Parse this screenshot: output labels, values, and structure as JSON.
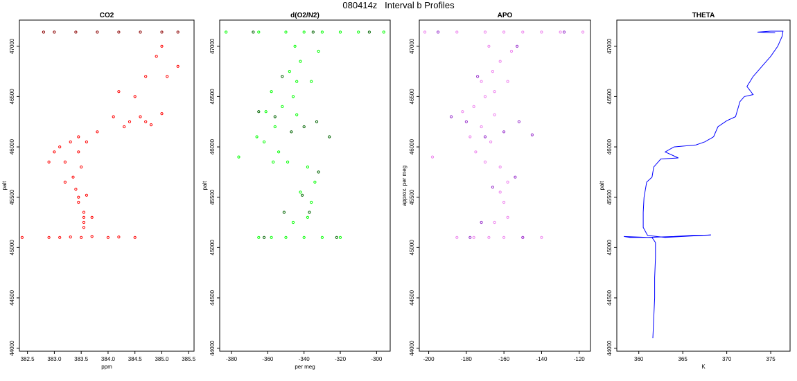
{
  "figure": {
    "title": "080414z   Interval b Profiles"
  },
  "chart_data": [
    {
      "type": "scatter",
      "title": "CO2",
      "xlabel": "ppm",
      "ylabel": "palt",
      "xlim": [
        382.35,
        385.6
      ],
      "ylim": [
        43970,
        47260
      ],
      "xticks": [
        382.5,
        383.0,
        383.5,
        384.0,
        384.5,
        385.0,
        385.5
      ],
      "xtick_labels": [
        "382.5",
        "383.0",
        "383.5",
        "384.0",
        "384.5",
        "385.0",
        "385.5"
      ],
      "yticks": [
        44000,
        44500,
        45000,
        45500,
        46000,
        46500,
        47000
      ],
      "ytick_labels": [
        "44000",
        "44500",
        "45000",
        "45500",
        "46000",
        "46500",
        "47000"
      ],
      "grid": false,
      "colors": {
        "primary": "#ff0000",
        "secondary": "#8b0000"
      },
      "series": [
        {
          "values": [
            [
              382.9,
              45100
            ],
            [
              383.1,
              45100
            ],
            [
              383.3,
              45105
            ],
            [
              383.5,
              45100
            ],
            [
              383.7,
              45110
            ],
            [
              384.0,
              45100
            ],
            [
              384.2,
              45105
            ],
            [
              384.5,
              45100
            ],
            [
              382.4,
              45100
            ],
            [
              383.55,
              45200
            ],
            [
              383.55,
              45250
            ],
            [
              383.55,
              45300
            ],
            [
              383.55,
              45350
            ],
            [
              383.45,
              45450
            ],
            [
              383.45,
              45500
            ],
            [
              383.4,
              45580
            ],
            [
              383.2,
              45650
            ],
            [
              383.35,
              45700
            ],
            [
              383.5,
              45800
            ],
            [
              383.2,
              45850
            ],
            [
              383.0,
              45950
            ],
            [
              383.45,
              45950
            ],
            [
              383.1,
              46000
            ],
            [
              383.3,
              46050
            ],
            [
              383.6,
              46050
            ],
            [
              383.45,
              46100
            ],
            [
              383.8,
              46150
            ],
            [
              384.3,
              46200
            ],
            [
              384.4,
              46250
            ],
            [
              384.6,
              46300
            ],
            [
              384.5,
              46500
            ],
            [
              384.7,
              46700
            ],
            [
              384.9,
              46900
            ],
            [
              385.0,
              47000
            ],
            [
              385.3,
              46800
            ],
            [
              385.0,
              46330
            ],
            [
              384.8,
              46220
            ],
            [
              384.1,
              46300
            ],
            [
              384.2,
              46550
            ],
            [
              385.1,
              46700
            ],
            [
              383.7,
              45300
            ],
            [
              383.6,
              45520
            ],
            [
              382.9,
              45850
            ],
            [
              384.7,
              46250
            ]
          ]
        },
        {
          "values": [
            [
              383.0,
              47140
            ],
            [
              383.4,
              47140
            ],
            [
              383.8,
              47140
            ],
            [
              384.2,
              47140
            ],
            [
              384.6,
              47140
            ],
            [
              385.0,
              47140
            ],
            [
              385.3,
              47140
            ],
            [
              382.8,
              47140
            ]
          ]
        }
      ]
    },
    {
      "type": "scatter",
      "title": "d(O2/N2)",
      "xlabel": "per meg",
      "ylabel": "palt",
      "xlim": [
        -386.5,
        -292.5
      ],
      "ylim": [
        43970,
        47260
      ],
      "xticks": [
        -380,
        -360,
        -340,
        -320,
        -300
      ],
      "xtick_labels": [
        "-380",
        "-360",
        "-340",
        "-320",
        "-300"
      ],
      "yticks": [
        44000,
        44500,
        45000,
        45500,
        46000,
        46500,
        47000
      ],
      "ytick_labels": [
        "44000",
        "44500",
        "45000",
        "45500",
        "46000",
        "46500",
        "47000"
      ],
      "grid": false,
      "colors": {
        "primary": "#00ff00",
        "secondary": "#006400"
      },
      "series": [
        {
          "values": [
            [
              -383,
              47140
            ],
            [
              -365,
              47140
            ],
            [
              -350,
              47140
            ],
            [
              -340,
              47140
            ],
            [
              -330,
              47140
            ],
            [
              -320,
              47140
            ],
            [
              -310,
              47140
            ],
            [
              -296,
              47140
            ],
            [
              -358,
              45100
            ],
            [
              -350,
              45100
            ],
            [
              -340,
              45100
            ],
            [
              -330,
              45100
            ],
            [
              -320,
              45100
            ],
            [
              -365,
              45100
            ],
            [
              -346,
              45250
            ],
            [
              -338,
              45300
            ],
            [
              -336,
              45450
            ],
            [
              -342,
              45550
            ],
            [
              -334,
              45650
            ],
            [
              -338,
              45800
            ],
            [
              -349,
              45850
            ],
            [
              -357,
              45850
            ],
            [
              -376,
              45900
            ],
            [
              -354,
              45950
            ],
            [
              -362,
              46050
            ],
            [
              -366,
              46100
            ],
            [
              -356,
              46200
            ],
            [
              -361,
              46350
            ],
            [
              -352,
              46400
            ],
            [
              -346,
              46500
            ],
            [
              -358,
              46550
            ],
            [
              -344,
              46650
            ],
            [
              -348,
              46750
            ],
            [
              -342,
              46850
            ],
            [
              -345,
              47000
            ],
            [
              -332,
              46950
            ],
            [
              -336,
              46650
            ],
            [
              -344,
              46320
            ]
          ]
        },
        {
          "values": [
            [
              -365,
              46350
            ],
            [
              -356,
              46300
            ],
            [
              -340,
              46200
            ],
            [
              -333,
              46250
            ],
            [
              -326,
              46100
            ],
            [
              -347,
              46150
            ],
            [
              -332,
              45750
            ],
            [
              -337,
              45350
            ],
            [
              -341,
              45520
            ],
            [
              -352,
              46700
            ],
            [
              -351,
              45350
            ],
            [
              -368,
              47140
            ],
            [
              -304,
              47140
            ],
            [
              -335,
              47140
            ],
            [
              -322,
              45100
            ],
            [
              -362,
              45100
            ]
          ]
        }
      ]
    },
    {
      "type": "scatter",
      "title": "APO",
      "xlabel": "",
      "ylabel": "approx. per meg",
      "xlim": [
        -205,
        -114
      ],
      "ylim": [
        43970,
        47260
      ],
      "xticks": [
        -200,
        -180,
        -160,
        -140,
        -120
      ],
      "xtick_labels": [
        "-200",
        "-180",
        "-160",
        "-140",
        "-120"
      ],
      "yticks": [
        44000,
        44500,
        45000,
        45500,
        46000,
        46500,
        47000
      ],
      "ytick_labels": [
        "44000",
        "44500",
        "45000",
        "45500",
        "46000",
        "46500",
        "47000"
      ],
      "grid": false,
      "colors": {
        "primary": "#ee82ee",
        "secondary": "#9932cc"
      },
      "series": [
        {
          "values": [
            [
              -202,
              47140
            ],
            [
              -185,
              47140
            ],
            [
              -170,
              47140
            ],
            [
              -160,
              47140
            ],
            [
              -150,
              47140
            ],
            [
              -140,
              47140
            ],
            [
              -130,
              47140
            ],
            [
              -118,
              47140
            ],
            [
              -176,
              45100
            ],
            [
              -168,
              45100
            ],
            [
              -160,
              45100
            ],
            [
              -150,
              45100
            ],
            [
              -140,
              45100
            ],
            [
              -185,
              45100
            ],
            [
              -165,
              45250
            ],
            [
              -158,
              45300
            ],
            [
              -160,
              45450
            ],
            [
              -162,
              45550
            ],
            [
              -158,
              45650
            ],
            [
              -162,
              45800
            ],
            [
              -170,
              45850
            ],
            [
              -175,
              45950
            ],
            [
              -198,
              45900
            ],
            [
              -167,
              46050
            ],
            [
              -178,
              46100
            ],
            [
              -172,
              46200
            ],
            [
              -182,
              46350
            ],
            [
              -176,
              46400
            ],
            [
              -170,
              46500
            ],
            [
              -165,
              46550
            ],
            [
              -172,
              46650
            ],
            [
              -166,
              46750
            ],
            [
              -162,
              46850
            ],
            [
              -168,
              47000
            ],
            [
              -156,
              46950
            ],
            [
              -158,
              46650
            ],
            [
              -165,
              46320
            ]
          ]
        },
        {
          "values": [
            [
              -188,
              46300
            ],
            [
              -180,
              46250
            ],
            [
              -160,
              46150
            ],
            [
              -152,
              46250
            ],
            [
              -145,
              46120
            ],
            [
              -170,
              46100
            ],
            [
              -154,
              45700
            ],
            [
              -172,
              45250
            ],
            [
              -178,
              45100
            ],
            [
              -195,
              47140
            ],
            [
              -128,
              47140
            ],
            [
              -150,
              45100
            ],
            [
              -166,
              45600
            ],
            [
              -174,
              46700
            ],
            [
              -153,
              47000
            ]
          ]
        }
      ]
    },
    {
      "type": "line",
      "title": "THETA",
      "xlabel": "K",
      "ylabel": "palt",
      "xlim": [
        357.5,
        377.2
      ],
      "ylim": [
        43970,
        47260
      ],
      "xticks": [
        360,
        365,
        370,
        375
      ],
      "xtick_labels": [
        "360",
        "365",
        "370",
        "375"
      ],
      "yticks": [
        44000,
        44500,
        45000,
        45500,
        46000,
        46500,
        47000
      ],
      "ytick_labels": [
        "44000",
        "44500",
        "45000",
        "45500",
        "46000",
        "46500",
        "47000"
      ],
      "grid": false,
      "colors": {
        "primary": "#0000ff"
      },
      "series": [
        {
          "values": [
            [
              361.6,
              44100
            ],
            [
              361.7,
              44300
            ],
            [
              361.8,
              44500
            ],
            [
              361.8,
              44700
            ],
            [
              361.9,
              44900
            ],
            [
              361.9,
              45050
            ],
            [
              361.5,
              45100
            ],
            [
              359.0,
              45100
            ],
            [
              358.3,
              45110
            ],
            [
              361.0,
              45100
            ],
            [
              364.0,
              45110
            ],
            [
              366.0,
              45120
            ],
            [
              368.2,
              45125
            ],
            [
              363.0,
              45100
            ],
            [
              361.0,
              45120
            ],
            [
              360.5,
              45200
            ],
            [
              360.5,
              45350
            ],
            [
              360.6,
              45500
            ],
            [
              360.9,
              45650
            ],
            [
              361.5,
              45700
            ],
            [
              361.7,
              45800
            ],
            [
              362.5,
              45880
            ],
            [
              364.5,
              45890
            ],
            [
              363.0,
              45950
            ],
            [
              364.0,
              46000
            ],
            [
              366.5,
              46020
            ],
            [
              367.5,
              46050
            ],
            [
              368.5,
              46100
            ],
            [
              369.0,
              46200
            ],
            [
              370.0,
              46260
            ],
            [
              371.0,
              46300
            ],
            [
              371.5,
              46450
            ],
            [
              372.0,
              46500
            ],
            [
              373.0,
              46520
            ],
            [
              372.3,
              46600
            ],
            [
              373.0,
              46700
            ],
            [
              374.0,
              46800
            ],
            [
              375.0,
              46900
            ],
            [
              375.8,
              47000
            ],
            [
              376.3,
              47100
            ],
            [
              376.4,
              47150
            ],
            [
              375.0,
              47150
            ],
            [
              373.5,
              47140
            ],
            [
              375.5,
              47135
            ]
          ]
        }
      ]
    }
  ]
}
